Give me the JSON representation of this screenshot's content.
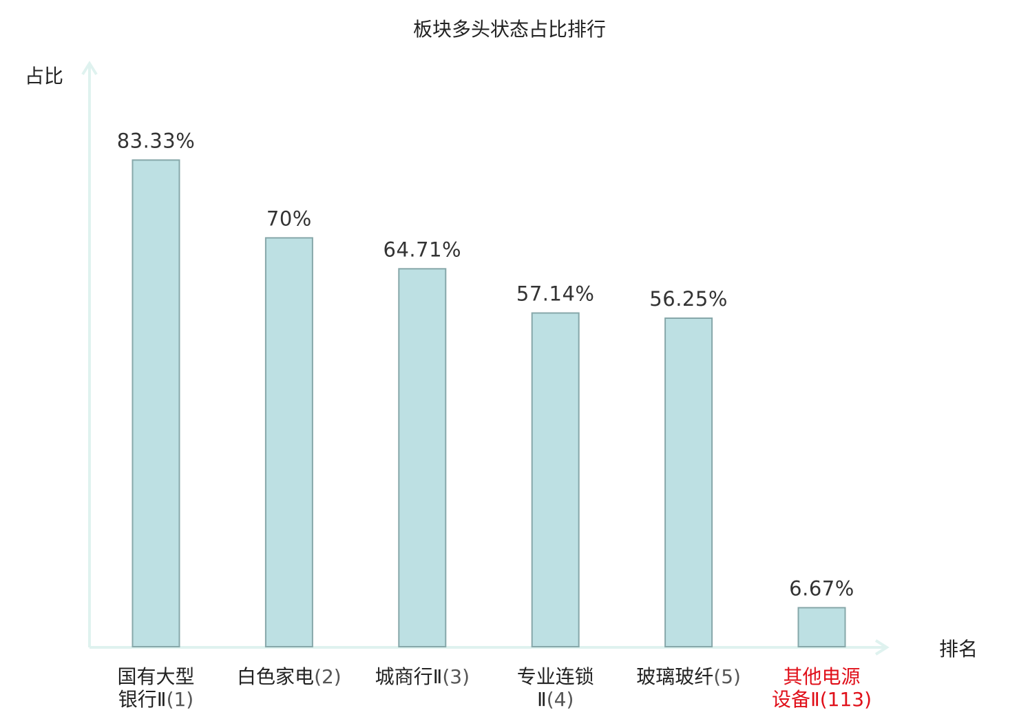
{
  "chart_data": {
    "type": "bar",
    "title": "板块多头状态占比排行",
    "ylabel": "占比",
    "xlabel": "排名",
    "categories": [
      {
        "name_lines": [
          "国有大型",
          "银行Ⅱ"
        ],
        "rank": "(1)",
        "highlight": false
      },
      {
        "name_lines": [
          "白色家电"
        ],
        "rank": "(2)",
        "highlight": false
      },
      {
        "name_lines": [
          "城商行Ⅱ"
        ],
        "rank": "(3)",
        "highlight": false
      },
      {
        "name_lines": [
          "专业连锁",
          "Ⅱ"
        ],
        "rank": "(4)",
        "highlight": false
      },
      {
        "name_lines": [
          "玻璃玻纤"
        ],
        "rank": "(5)",
        "highlight": false
      },
      {
        "name_lines": [
          "其他电源",
          "设备Ⅱ"
        ],
        "rank": "(113)",
        "highlight": true
      }
    ],
    "values": [
      83.33,
      70,
      64.71,
      57.14,
      56.25,
      6.67
    ],
    "value_labels": [
      "83.33%",
      "70%",
      "64.71%",
      "57.14%",
      "56.25%",
      "6.67%"
    ],
    "ylim": [
      0,
      100
    ],
    "grid": false,
    "legend": "none",
    "colors": {
      "bar_fill": "#bde0e3",
      "bar_stroke": "#86a7a9",
      "axis": "#dff2ef",
      "text": "#222222",
      "rank_text": "#555555",
      "highlight": "#e0101a"
    }
  }
}
